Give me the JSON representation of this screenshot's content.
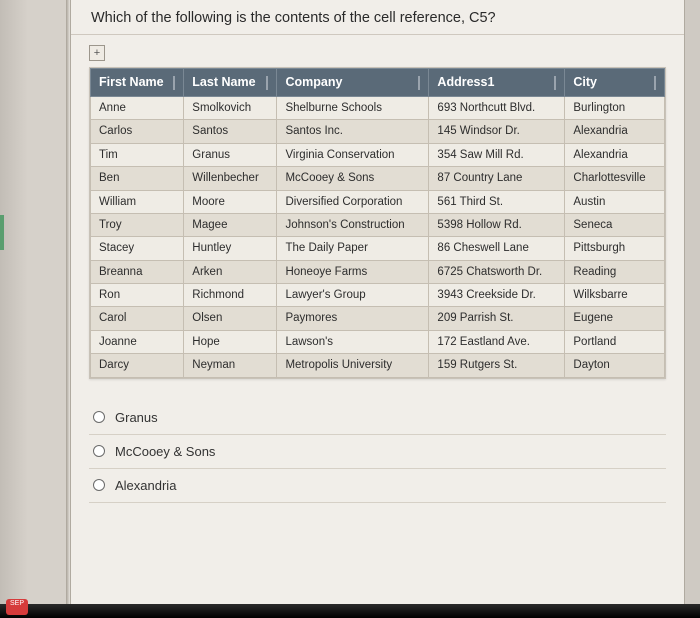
{
  "question": "Which of the following is the contents of the cell reference, C5?",
  "expand_symbol": "+",
  "table": {
    "headers": [
      "First Name",
      "Last Name",
      "Company",
      "Address1",
      "City"
    ],
    "rows": [
      {
        "alt": false,
        "cells": [
          "Anne",
          "Smolkovich",
          "Shelburne Schools",
          "693 Northcutt Blvd.",
          "Burlington"
        ]
      },
      {
        "alt": true,
        "cells": [
          "Carlos",
          "Santos",
          "Santos Inc.",
          "145 Windsor Dr.",
          "Alexandria"
        ]
      },
      {
        "alt": false,
        "cells": [
          "Tim",
          "Granus",
          "Virginia Conservation",
          "354 Saw Mill Rd.",
          "Alexandria"
        ]
      },
      {
        "alt": true,
        "cells": [
          "Ben",
          "Willenbecher",
          "McCooey & Sons",
          "87 Country Lane",
          "Charlottesville"
        ]
      },
      {
        "alt": false,
        "cells": [
          "William",
          "Moore",
          "Diversified Corporation",
          "561 Third St.",
          "Austin"
        ]
      },
      {
        "alt": true,
        "cells": [
          "Troy",
          "Magee",
          "Johnson's Construction",
          "5398 Hollow Rd.",
          "Seneca"
        ]
      },
      {
        "alt": false,
        "cells": [
          "Stacey",
          "Huntley",
          "The Daily Paper",
          "86 Cheswell Lane",
          "Pittsburgh"
        ]
      },
      {
        "alt": true,
        "cells": [
          "Breanna",
          "Arken",
          "Honeoye Farms",
          "6725 Chatsworth Dr.",
          "Reading"
        ]
      },
      {
        "alt": false,
        "cells": [
          "Ron",
          "Richmond",
          "Lawyer's Group",
          "3943 Creekside Dr.",
          "Wilksbarre"
        ]
      },
      {
        "alt": true,
        "cells": [
          "Carol",
          "Olsen",
          "Paymores",
          "209 Parrish St.",
          "Eugene"
        ]
      },
      {
        "alt": false,
        "cells": [
          "Joanne",
          "Hope",
          "Lawson's",
          "172 Eastland Ave.",
          "Portland"
        ]
      },
      {
        "alt": true,
        "cells": [
          "Darcy",
          "Neyman",
          "Metropolis University",
          "159 Rutgers St.",
          "Dayton"
        ]
      }
    ]
  },
  "options": [
    "Granus",
    "McCooey & Sons",
    "Alexandria"
  ],
  "dock_label": "SEP"
}
